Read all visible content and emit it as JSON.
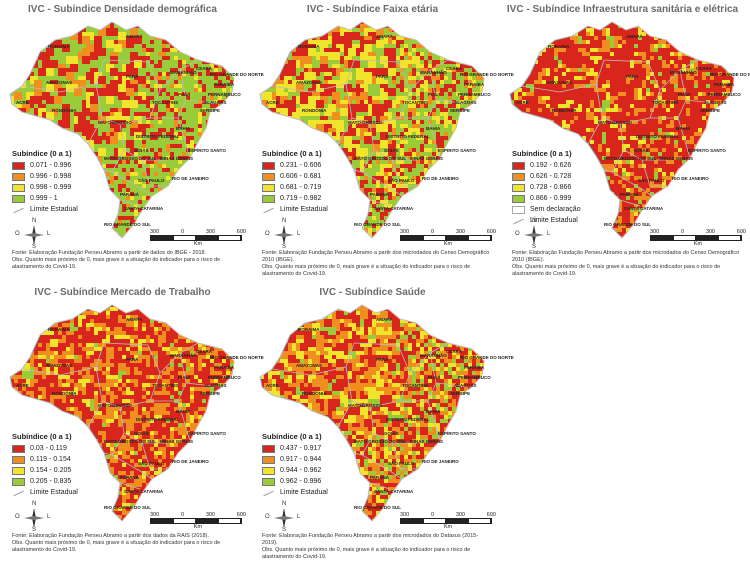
{
  "colors": {
    "c1": "#d9261c",
    "c2": "#f08f1f",
    "c3": "#f1e52b",
    "c4": "#9acb39",
    "border": "#c9c9c9"
  },
  "legend_title": "Subíndice (0 a 1)",
  "legend_limit": "Limite Estadual",
  "legend_none": "Sem declaração",
  "compass": {
    "n": "N",
    "s": "S",
    "l": "L",
    "o": "O"
  },
  "scale": {
    "ticks": [
      "300",
      "0",
      "300",
      "600"
    ],
    "unit": "Km"
  },
  "obs": "Obs. Quanto mais próximo de 0, mais grave é a situação do indicador para o risco de alastramento do Covid-19.",
  "states": {
    "roraima": "RORAIMA",
    "amapa": "AMAPÁ",
    "amazonas": "AMAZONAS",
    "para": "PARÁ",
    "maranhao": "MARANHÃO",
    "ceara": "CEARÁ",
    "rn": "RIO GRANDE DO NORTE",
    "paraiba": "PARAÍBA",
    "pernambuco": "PERNAMBUCO",
    "alagoas": "ALAGOAS",
    "sergipe": "SERGIPE",
    "piaui": "PIAUÍ",
    "acre": "ACRE",
    "rondonia": "RONDÔNIA",
    "tocantins": "TOCANTINS",
    "bahia": "BAHIA",
    "mt": "MATO GROSSO",
    "df": "DISTRITO FEDERAL",
    "goias": "GOIÁS",
    "mg": "MINAS GERAIS",
    "es": "ESPÍRITO SANTO",
    "ms": "MATO GROSSO DO SUL",
    "sp": "SÃO PAULO",
    "rj": "RIO DE JANEIRO",
    "parana": "PARANÁ",
    "sc": "SANTA CATARINA",
    "rs": "RIO GRANDE DO SUL"
  },
  "panels": [
    {
      "title": "IVC - Subíndice Densidade demográfica",
      "classes": [
        "0.071 - 0.996",
        "0.996 - 0.998",
        "0.998 - 0.999",
        "0.999 - 1"
      ],
      "has_none": false,
      "source": "Fonte: Elaboração Fundação Perseu Abramo a partir de dados do IBGE - 2018."
    },
    {
      "title": "IVC - Subíndice Faixa etária",
      "classes": [
        "0.231 - 0.606",
        "0.606 - 0.681",
        "0.681 - 0.719",
        "0.719 - 0.982"
      ],
      "has_none": false,
      "source": "Fonte: Elaboração Fundação Perseu Abramo a partir dos microdados do Censo Demográfico 2010 (IBGE)."
    },
    {
      "title": "IVC - Subíndice Infraestrutura sanitária e elétrica",
      "classes": [
        "0.192 - 0.626",
        "0.626 - 0.728",
        "0.728 - 0.866",
        "0.866 - 0.999"
      ],
      "has_none": true,
      "source": "Fonte: Elaboração Fundação Perseu Abramo a partir dos microdados do Censo Demográfico 2010 (IBGE)."
    },
    {
      "title": "IVC - Subíndice Mercado de Trabalho",
      "classes": [
        "0.03 - 0.119",
        "0.119 - 0.154",
        "0.154 - 0.205",
        "0.205 - 0.835"
      ],
      "has_none": false,
      "source": "Fonte: Elaboração Fundação Perseu Abramo a partir dos dados da RAIS (2018)."
    },
    {
      "title": "IVC - Subíndice Saúde",
      "classes": [
        "0.437 - 0.917",
        "0.917 - 0.944",
        "0.944 - 0.962",
        "0.962 - 0.996"
      ],
      "has_none": false,
      "source": "Fonte: Elaboração Fundação Perseu Abramo a partir dos microdados do Datasus (2015-2019)."
    }
  ]
}
